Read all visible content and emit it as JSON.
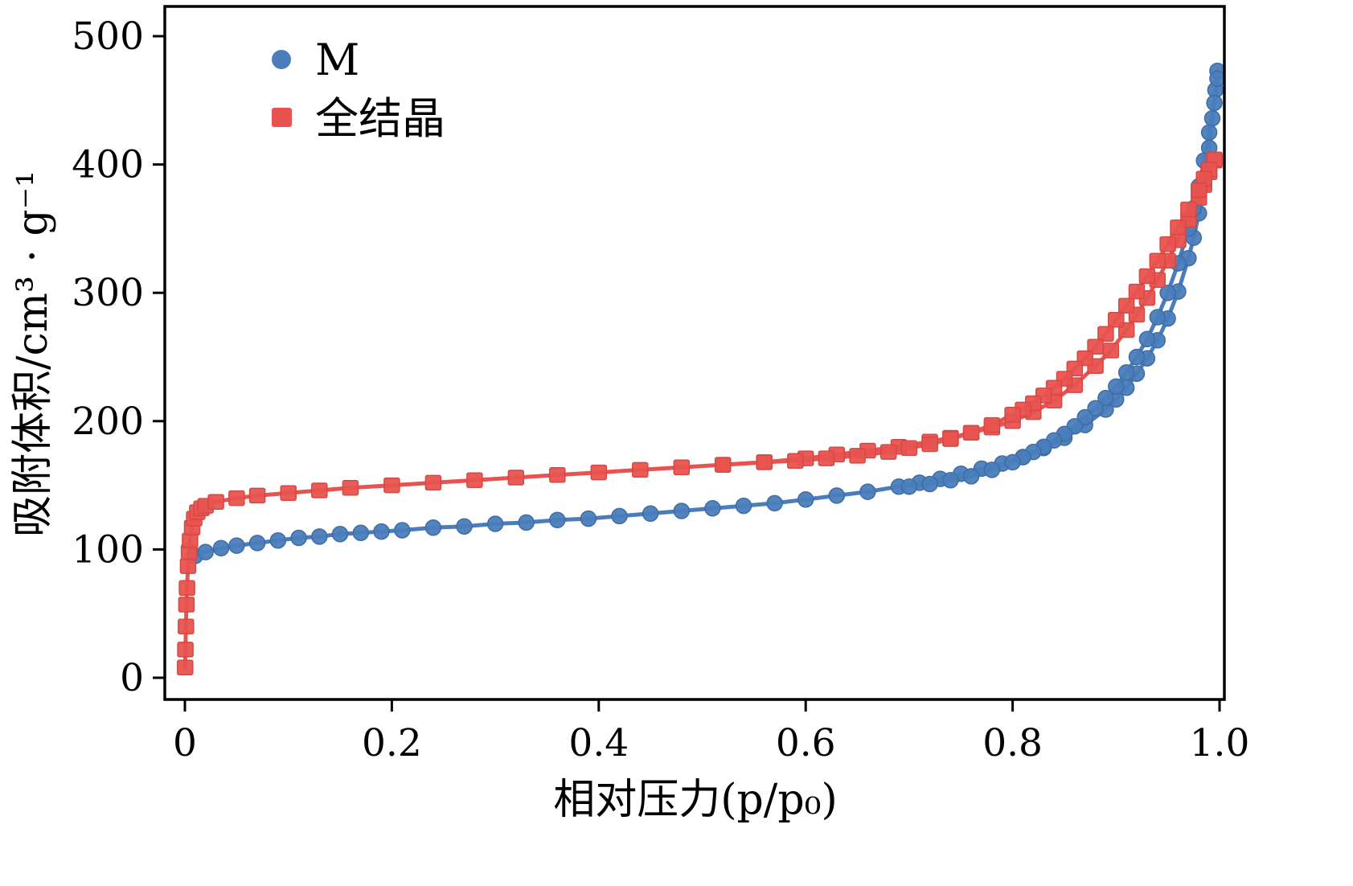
{
  "figure": {
    "background": "#ffffff",
    "axis_color": "#000000"
  },
  "chart_data": {
    "type": "line",
    "title": "",
    "xlabel": "相对压力(p/p₀)",
    "ylabel": "吸附体积/cm³ · g⁻¹",
    "x_range": [
      0,
      1.0
    ],
    "y_range": [
      0,
      500
    ],
    "x_ticks": [
      0,
      0.2,
      0.4,
      0.6,
      0.8,
      1.0
    ],
    "x_tick_labels": [
      "0",
      "0.2",
      "0.4",
      "0.6",
      "0.8",
      "1.0"
    ],
    "y_ticks": [
      0,
      100,
      200,
      300,
      400,
      500
    ],
    "y_tick_labels": [
      "0",
      "100",
      "200",
      "300",
      "400",
      "500"
    ],
    "grid": false,
    "legend_position": "top-left",
    "series": [
      {
        "name": "M",
        "marker": "circle",
        "color": "#4a7dba",
        "edge_color": "#3e6da6",
        "branches": {
          "adsorption": [
            [
              0.01,
              95
            ],
            [
              0.02,
              98
            ],
            [
              0.035,
              101
            ],
            [
              0.05,
              103
            ],
            [
              0.07,
              105
            ],
            [
              0.09,
              107
            ],
            [
              0.11,
              109
            ],
            [
              0.13,
              110
            ],
            [
              0.15,
              112
            ],
            [
              0.17,
              113
            ],
            [
              0.19,
              114
            ],
            [
              0.21,
              115
            ],
            [
              0.24,
              117
            ],
            [
              0.27,
              118
            ],
            [
              0.3,
              120
            ],
            [
              0.33,
              121
            ],
            [
              0.36,
              123
            ],
            [
              0.39,
              124
            ],
            [
              0.42,
              126
            ],
            [
              0.45,
              128
            ],
            [
              0.48,
              130
            ],
            [
              0.51,
              132
            ],
            [
              0.54,
              134
            ],
            [
              0.57,
              136
            ],
            [
              0.6,
              139
            ],
            [
              0.63,
              142
            ],
            [
              0.66,
              145
            ],
            [
              0.69,
              149
            ],
            [
              0.71,
              152
            ],
            [
              0.73,
              155
            ],
            [
              0.75,
              159
            ],
            [
              0.77,
              163
            ],
            [
              0.79,
              167
            ],
            [
              0.81,
              172
            ],
            [
              0.83,
              179
            ],
            [
              0.85,
              187
            ],
            [
              0.87,
              197
            ],
            [
              0.89,
              209
            ],
            [
              0.9,
              217
            ],
            [
              0.91,
              226
            ],
            [
              0.92,
              237
            ],
            [
              0.93,
              249
            ],
            [
              0.94,
              263
            ],
            [
              0.95,
              280
            ],
            [
              0.96,
              301
            ],
            [
              0.97,
              327
            ],
            [
              0.975,
              343
            ],
            [
              0.98,
              362
            ],
            [
              0.985,
              385
            ],
            [
              0.99,
              413
            ],
            [
              0.993,
              436
            ],
            [
              0.996,
              458
            ],
            [
              0.998,
              473
            ]
          ],
          "desorption": [
            [
              0.998,
              467
            ],
            [
              0.995,
              448
            ],
            [
              0.99,
              425
            ],
            [
              0.985,
              403
            ],
            [
              0.98,
              383
            ],
            [
              0.975,
              366
            ],
            [
              0.97,
              350
            ],
            [
              0.96,
              323
            ],
            [
              0.95,
              300
            ],
            [
              0.94,
              281
            ],
            [
              0.93,
              264
            ],
            [
              0.92,
              250
            ],
            [
              0.91,
              238
            ],
            [
              0.9,
              227
            ],
            [
              0.89,
              218
            ],
            [
              0.88,
              210
            ],
            [
              0.87,
              203
            ],
            [
              0.86,
              196
            ],
            [
              0.85,
              190
            ],
            [
              0.84,
              185
            ],
            [
              0.83,
              180
            ],
            [
              0.82,
              176
            ],
            [
              0.81,
              172
            ],
            [
              0.8,
              168
            ],
            [
              0.78,
              162
            ],
            [
              0.76,
              157
            ],
            [
              0.74,
              154
            ],
            [
              0.72,
              151
            ],
            [
              0.7,
              149
            ]
          ]
        }
      },
      {
        "name": "全结晶",
        "marker": "square",
        "color": "#e8534f",
        "edge_color": "#d54844",
        "branches": {
          "adsorption": [
            [
              0.0002,
              8
            ],
            [
              0.0005,
              22
            ],
            [
              0.001,
              40
            ],
            [
              0.0015,
              57
            ],
            [
              0.002,
              70
            ],
            [
              0.003,
              87
            ],
            [
              0.004,
              98
            ],
            [
              0.005,
              107
            ],
            [
              0.007,
              117
            ],
            [
              0.009,
              124
            ],
            [
              0.012,
              129
            ],
            [
              0.016,
              132
            ],
            [
              0.02,
              134
            ],
            [
              0.03,
              137
            ],
            [
              0.05,
              140
            ],
            [
              0.07,
              142
            ],
            [
              0.1,
              144
            ],
            [
              0.13,
              146
            ],
            [
              0.16,
              148
            ],
            [
              0.2,
              150
            ],
            [
              0.24,
              152
            ],
            [
              0.28,
              154
            ],
            [
              0.32,
              156
            ],
            [
              0.36,
              158
            ],
            [
              0.4,
              160
            ],
            [
              0.44,
              162
            ],
            [
              0.48,
              164
            ],
            [
              0.52,
              166
            ],
            [
              0.56,
              168
            ],
            [
              0.6,
              171
            ],
            [
              0.63,
              174
            ],
            [
              0.66,
              177
            ],
            [
              0.69,
              180
            ],
            [
              0.72,
              184
            ],
            [
              0.74,
              187
            ],
            [
              0.76,
              191
            ],
            [
              0.78,
              195
            ],
            [
              0.8,
              200
            ],
            [
              0.82,
              207
            ],
            [
              0.84,
              216
            ],
            [
              0.86,
              228
            ],
            [
              0.88,
              243
            ],
            [
              0.895,
              255
            ],
            [
              0.91,
              271
            ],
            [
              0.92,
              283
            ],
            [
              0.93,
              296
            ],
            [
              0.94,
              310
            ],
            [
              0.95,
              325
            ],
            [
              0.96,
              341
            ],
            [
              0.97,
              357
            ],
            [
              0.98,
              374
            ],
            [
              0.985,
              384
            ],
            [
              0.99,
              394
            ],
            [
              0.995,
              403
            ]
          ],
          "desorption": [
            [
              0.995,
              404
            ],
            [
              0.99,
              396
            ],
            [
              0.985,
              389
            ],
            [
              0.98,
              380
            ],
            [
              0.97,
              365
            ],
            [
              0.96,
              351
            ],
            [
              0.95,
              338
            ],
            [
              0.94,
              325
            ],
            [
              0.93,
              313
            ],
            [
              0.92,
              301
            ],
            [
              0.91,
              290
            ],
            [
              0.9,
              279
            ],
            [
              0.89,
              268
            ],
            [
              0.88,
              258
            ],
            [
              0.87,
              249
            ],
            [
              0.86,
              241
            ],
            [
              0.85,
              233
            ],
            [
              0.84,
              226
            ],
            [
              0.83,
              220
            ],
            [
              0.82,
              214
            ],
            [
              0.81,
              209
            ],
            [
              0.8,
              205
            ],
            [
              0.78,
              197
            ],
            [
              0.76,
              191
            ],
            [
              0.74,
              186
            ],
            [
              0.72,
              182
            ],
            [
              0.7,
              179
            ],
            [
              0.68,
              176
            ],
            [
              0.65,
              173
            ],
            [
              0.62,
              171
            ],
            [
              0.59,
              169
            ],
            [
              0.56,
              168
            ],
            [
              0.52,
              166
            ]
          ]
        }
      }
    ]
  }
}
